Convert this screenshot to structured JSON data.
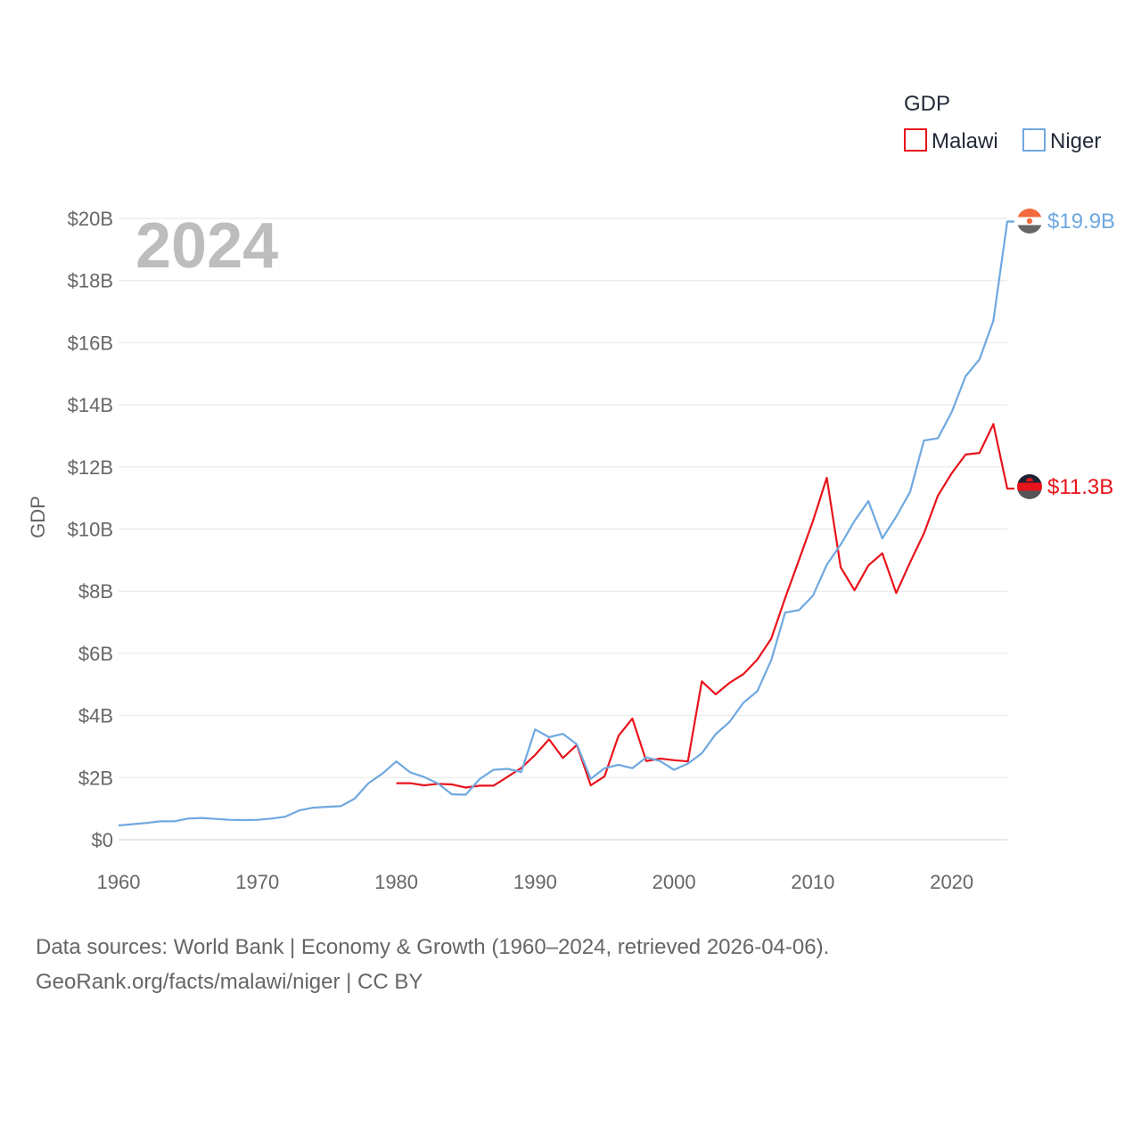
{
  "chart_data": {
    "type": "line",
    "title": "",
    "xlabel": "",
    "ylabel": "GDP",
    "year_label": "2024",
    "xlim": [
      1960,
      2024
    ],
    "ylim": [
      0,
      20
    ],
    "x_ticks": [
      {
        "value": 1960,
        "label": "1960"
      },
      {
        "value": 1970,
        "label": "1970"
      },
      {
        "value": 1980,
        "label": "1980"
      },
      {
        "value": 1990,
        "label": "1990"
      },
      {
        "value": 2000,
        "label": "2000"
      },
      {
        "value": 2010,
        "label": "2010"
      },
      {
        "value": 2020,
        "label": "2020"
      }
    ],
    "y_ticks": [
      {
        "value": 0,
        "label": "$0"
      },
      {
        "value": 2,
        "label": "$2B"
      },
      {
        "value": 4,
        "label": "$4B"
      },
      {
        "value": 6,
        "label": "$6B"
      },
      {
        "value": 8,
        "label": "$8B"
      },
      {
        "value": 10,
        "label": "$10B"
      },
      {
        "value": 12,
        "label": "$12B"
      },
      {
        "value": 14,
        "label": "$14B"
      },
      {
        "value": 16,
        "label": "$16B"
      },
      {
        "value": 18,
        "label": "$18B"
      },
      {
        "value": 20,
        "label": "$20B"
      }
    ],
    "legend": {
      "title": "GDP",
      "position": "top-right"
    },
    "series": [
      {
        "name": "Malawi",
        "color": "#e8131b",
        "end_label": "$11.3B",
        "x": [
          1980,
          1981,
          1982,
          1983,
          1984,
          1985,
          1986,
          1987,
          1988,
          1989,
          1990,
          1991,
          1992,
          1993,
          1994,
          1995,
          1996,
          1997,
          1998,
          1999,
          2000,
          2001,
          2002,
          2003,
          2004,
          2005,
          2006,
          2007,
          2008,
          2009,
          2010,
          2011,
          2012,
          2013,
          2014,
          2015,
          2016,
          2017,
          2018,
          2019,
          2020,
          2021,
          2022,
          2023,
          2024
        ],
        "values": [
          1.82,
          1.82,
          1.75,
          1.8,
          1.78,
          1.68,
          1.74,
          1.74,
          2.02,
          2.31,
          2.73,
          3.23,
          2.63,
          3.05,
          1.75,
          2.04,
          3.34,
          3.9,
          2.53,
          2.61,
          2.56,
          2.52,
          5.1,
          4.68,
          5.05,
          5.33,
          5.8,
          6.47,
          7.78,
          9.0,
          10.25,
          11.65,
          8.77,
          8.03,
          8.83,
          9.22,
          7.94,
          8.93,
          9.86,
          11.07,
          11.8,
          12.4,
          12.45,
          13.38,
          11.3
        ]
      },
      {
        "name": "Niger",
        "color": "#6fa8e0",
        "end_label": "$19.9B",
        "x": [
          1960,
          1961,
          1962,
          1963,
          1964,
          1965,
          1966,
          1967,
          1968,
          1969,
          1970,
          1971,
          1972,
          1973,
          1974,
          1975,
          1976,
          1977,
          1978,
          1979,
          1980,
          1981,
          1982,
          1983,
          1984,
          1985,
          1986,
          1987,
          1988,
          1989,
          1990,
          1991,
          1992,
          1993,
          1994,
          1995,
          1996,
          1997,
          1998,
          1999,
          2000,
          2001,
          2002,
          2003,
          2004,
          2005,
          2006,
          2007,
          2008,
          2009,
          2010,
          2011,
          2012,
          2013,
          2014,
          2015,
          2016,
          2017,
          2018,
          2019,
          2020,
          2021,
          2022,
          2023,
          2024
        ],
        "values": [
          0.46,
          0.5,
          0.54,
          0.59,
          0.59,
          0.68,
          0.7,
          0.67,
          0.64,
          0.63,
          0.64,
          0.68,
          0.74,
          0.94,
          1.03,
          1.06,
          1.08,
          1.32,
          1.82,
          2.13,
          2.52,
          2.17,
          2.02,
          1.81,
          1.46,
          1.45,
          1.95,
          2.25,
          2.28,
          2.18,
          3.55,
          3.3,
          3.41,
          3.07,
          1.96,
          2.3,
          2.41,
          2.3,
          2.65,
          2.53,
          2.25,
          2.45,
          2.78,
          3.4,
          3.79,
          4.41,
          4.78,
          5.78,
          7.31,
          7.39,
          7.85,
          8.85,
          9.5,
          10.26,
          10.9,
          9.7,
          10.4,
          11.2,
          12.85,
          12.92,
          13.77,
          14.92,
          15.46,
          16.71,
          19.9
        ]
      }
    ]
  },
  "source": {
    "line1": "Data sources: World Bank | Economy & Growth (1960–2024, retrieved 2026-04-06).",
    "line2": "GeoRank.org/facts/malawi/niger | CC BY"
  }
}
